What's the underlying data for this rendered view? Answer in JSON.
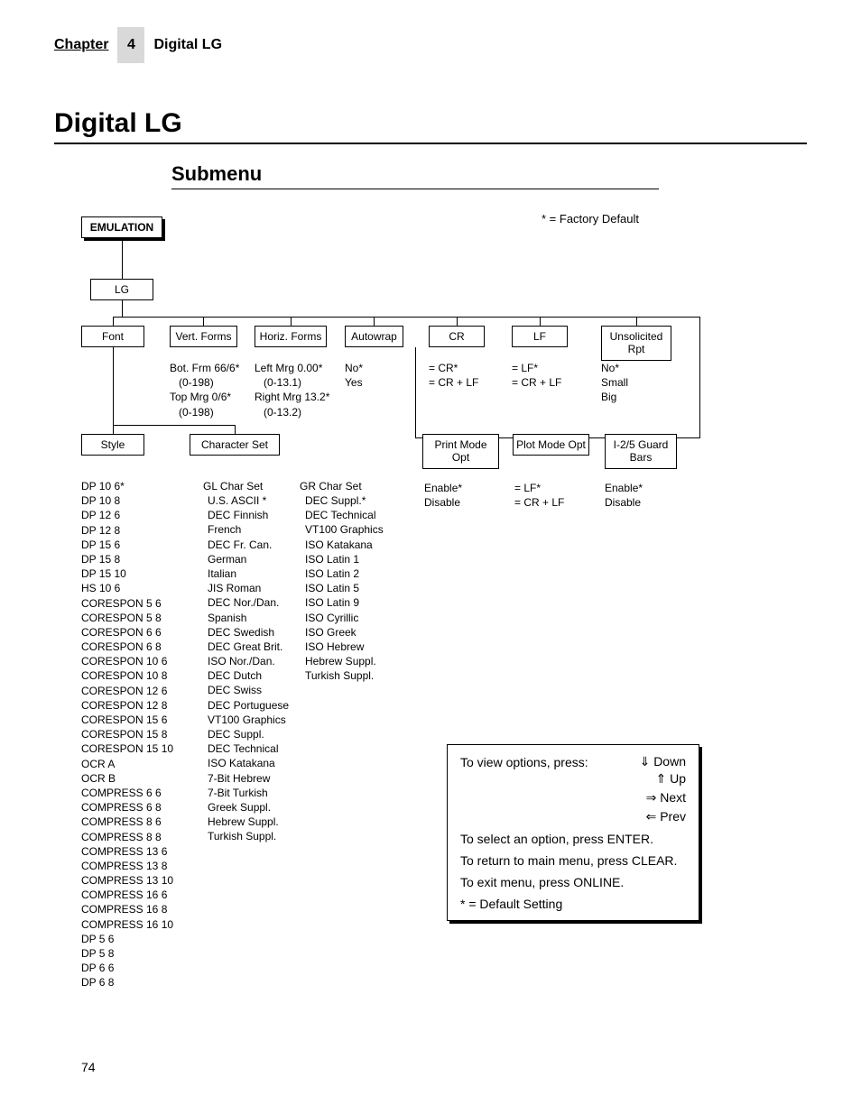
{
  "header": {
    "chapter_label": "Chapter",
    "chapter_num": "4",
    "chapter_title": "Digital LG"
  },
  "main_title": "Digital LG",
  "sub_title": "Submenu",
  "factory_default_note": "* = Factory Default",
  "page_number": "74",
  "tree": {
    "emulation": "EMULATION",
    "lg": "LG",
    "row1": {
      "font": "Font",
      "vert_forms": "Vert. Forms",
      "horiz_forms": "Horiz. Forms",
      "autowrap": "Autowrap",
      "cr": "CR",
      "lf": "LF",
      "unsolicited_rpt": "Unsolicited Rpt"
    },
    "vert_forms_opts": {
      "l1": "Bot. Frm 66/6*",
      "l2": "(0-198)",
      "l3": "Top Mrg 0/6*",
      "l4": "(0-198)"
    },
    "horiz_forms_opts": {
      "l1": "Left Mrg 0.00*",
      "l2": "(0-13.1)",
      "l3": "Right Mrg 13.2*",
      "l4": "(0-13.2)"
    },
    "autowrap_opts": {
      "l1": "No*",
      "l2": "Yes"
    },
    "cr_opts": {
      "l1": "= CR*",
      "l2": "= CR + LF"
    },
    "lf_opts": {
      "l1": "= LF*",
      "l2": "= CR + LF"
    },
    "unsolicited_opts": {
      "l1": "No*",
      "l2": "Small",
      "l3": "Big"
    },
    "row2": {
      "style": "Style",
      "charset": "Character Set",
      "print_mode": "Print Mode Opt",
      "plot_mode": "Plot Mode Opt",
      "guard_bars": "I-2/5 Guard Bars"
    },
    "print_mode_opts": {
      "l1": "Enable*",
      "l2": "Disable"
    },
    "plot_mode_opts": {
      "l1": "= LF*",
      "l2": "= CR + LF"
    },
    "guard_opts": {
      "l1": "Enable*",
      "l2": "Disable"
    },
    "style_list": [
      "DP 10 6*",
      "DP 10 8",
      "DP 12 6",
      "DP 12 8",
      "DP 15 6",
      "DP 15 8",
      "DP 15 10",
      "HS 10 6",
      "CORESPON 5 6",
      "CORESPON 5 8",
      "CORESPON 6 6",
      "CORESPON 6 8",
      "CORESPON 10 6",
      "CORESPON 10 8",
      "CORESPON 12 6",
      "CORESPON 12 8",
      "CORESPON 15 6",
      "CORESPON 15 8",
      "CORESPON 15 10",
      "OCR A",
      "OCR B",
      "COMPRESS 6 6",
      "COMPRESS 6 8",
      "COMPRESS 8 6",
      "COMPRESS 8 8",
      "COMPRESS 13 6",
      "COMPRESS 13 8",
      "COMPRESS 13 10",
      "COMPRESS 16 6",
      "COMPRESS 16 8",
      "COMPRESS 16 10",
      "DP 5 6",
      "DP 5 8",
      "DP 6 6",
      "DP 6 8"
    ],
    "gl_header": "GL Char Set",
    "gl_list": [
      "U.S. ASCII *",
      "DEC Finnish",
      "French",
      "DEC Fr. Can.",
      "German",
      "Italian",
      "JIS Roman",
      "DEC Nor./Dan.",
      "Spanish",
      "DEC Swedish",
      "DEC Great Brit.",
      "ISO Nor./Dan.",
      "DEC Dutch",
      "DEC Swiss",
      "DEC Portuguese",
      "VT100 Graphics",
      "DEC Suppl.",
      "DEC Technical",
      "ISO Katakana",
      "7-Bit Hebrew",
      "7-Bit Turkish",
      "Greek Suppl.",
      "Hebrew Suppl.",
      "Turkish Suppl."
    ],
    "gr_header": "GR Char Set",
    "gr_list": [
      "DEC Suppl.*",
      "DEC Technical",
      "VT100 Graphics",
      "ISO Katakana",
      "ISO Latin 1",
      "ISO Latin 2",
      "ISO Latin 5",
      "ISO Latin 9",
      "ISO Cyrillic",
      "ISO Greek",
      "ISO Hebrew",
      "Hebrew Suppl.",
      "Turkish Suppl."
    ]
  },
  "info_box": {
    "view_prefix": "To view options, press:",
    "down": "⇓ Down",
    "up": "⇑ Up",
    "next": "⇒ Next",
    "prev": "⇐ Prev",
    "select": "To select an option, press ENTER.",
    "return": "To return to main menu, press CLEAR.",
    "exit": "To exit menu, press ONLINE.",
    "default": "* = Default Setting"
  }
}
